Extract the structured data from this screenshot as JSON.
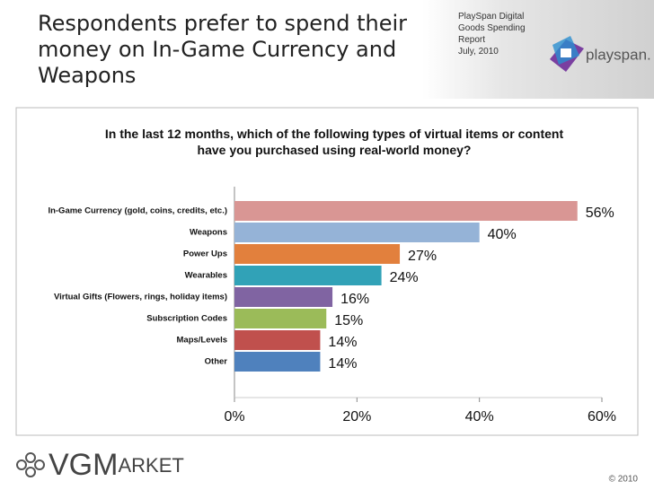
{
  "header": {
    "title": "Respondents prefer to spend their money on In-Game Currency and Weapons",
    "report_lines": [
      "PlaySpan Digital",
      "Goods Spending",
      "Report",
      "July, 2010"
    ],
    "brand": "playspan."
  },
  "chart_data": {
    "type": "hbar",
    "title": "In the last 12 months, which of the following types of virtual items or content have you purchased using real-world money?",
    "categories": [
      "In-Game Currency (gold, coins, credits, etc.)",
      "Weapons",
      "Power Ups",
      "Wearables",
      "Virtual Gifts (Flowers, rings, holiday items)",
      "Subscription Codes",
      "Maps/Levels",
      "Other"
    ],
    "values": [
      56,
      40,
      27,
      24,
      16,
      15,
      14,
      14
    ],
    "value_labels": [
      "56%",
      "40%",
      "27%",
      "24%",
      "16%",
      "15%",
      "14%",
      "14%"
    ],
    "colors": [
      "#d99694",
      "#95b3d7",
      "#e2803d",
      "#31a2b7",
      "#8064a2",
      "#9bbb59",
      "#c0504d",
      "#4f81bd"
    ],
    "xlim": [
      0,
      60
    ],
    "xticks": [
      {
        "value": 0,
        "label": "0%"
      },
      {
        "value": 20,
        "label": "20%"
      },
      {
        "value": 40,
        "label": "40%"
      },
      {
        "value": 60,
        "label": "60%"
      }
    ],
    "grid": false
  },
  "footer": {
    "logo_main": "VGM",
    "logo_rest": "ARKET",
    "copyright": "© 2010"
  }
}
